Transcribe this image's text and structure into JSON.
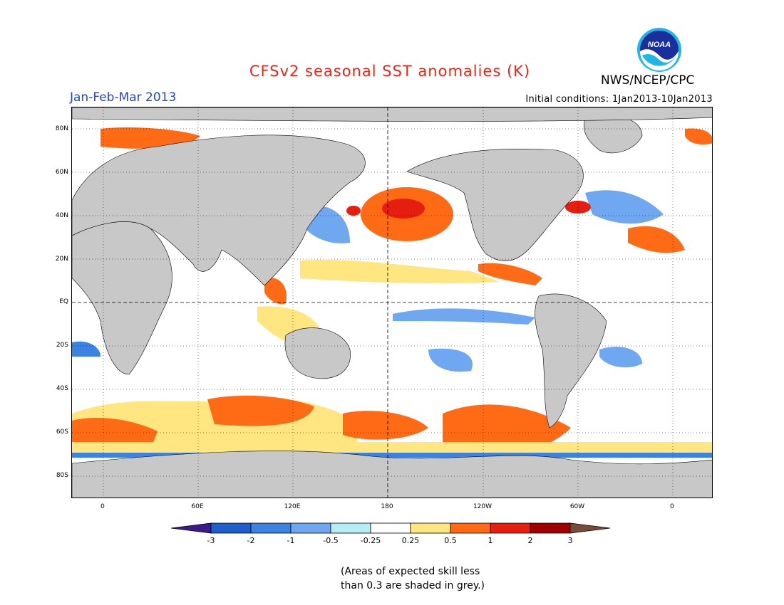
{
  "header": {
    "title": "CFSv2 seasonal SST anomalies (K)",
    "season": "Jan-Feb-Mar 2013",
    "initial_conditions": "Initial conditions: 1Jan2013-10Jan2013",
    "agency": "NWS/NCEP/CPC",
    "logo_text": "NOAA"
  },
  "colors": {
    "title": "#e8261a",
    "season": "#2244cc",
    "land": "#c8c8c8",
    "skill_grey": "#a9a9a9"
  },
  "axes": {
    "y_labels": [
      "80N",
      "60N",
      "40N",
      "20N",
      "EQ",
      "20S",
      "40S",
      "60S",
      "80S"
    ],
    "x_labels": [
      "0",
      "60E",
      "120E",
      "180",
      "120W",
      "60W",
      "0"
    ]
  },
  "colorbar": {
    "labels": [
      "-3",
      "-2",
      "-1",
      "-0.5",
      "-0.25",
      "0.25",
      "0.5",
      "1",
      "2",
      "3"
    ],
    "colors": [
      "#3c1a8c",
      "#1f5fcc",
      "#3c82e0",
      "#6fa8f0",
      "#b4eef4",
      "#ffffff",
      "#ffe680",
      "#ff6a14",
      "#e61e10",
      "#a00000",
      "#7a4a3a"
    ]
  },
  "note": {
    "line1": "(Areas of expected skill less",
    "line2": "than 0.3 are shaded in grey.)"
  }
}
